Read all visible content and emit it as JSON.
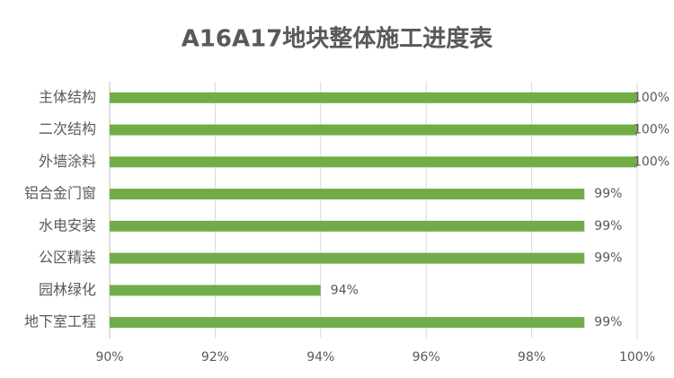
{
  "chart_data": {
    "type": "barh",
    "title": "A16A17地块整体施工进度表",
    "categories": [
      "主体结构",
      "二次结构",
      "外墙涂料",
      "铝合金门窗",
      "水电安装",
      "公区精装",
      "园林绿化",
      "地下室工程"
    ],
    "values": [
      100,
      100,
      100,
      99,
      99,
      99,
      94,
      99
    ],
    "value_labels": [
      "100%",
      "100%",
      "100%",
      "99%",
      "99%",
      "99%",
      "94%",
      "99%"
    ],
    "color": "#70ad47",
    "xlim": [
      90,
      100
    ],
    "xticks": [
      {
        "value": 90,
        "label": "90%"
      },
      {
        "value": 92,
        "label": "92%"
      },
      {
        "value": 94,
        "label": "94%"
      },
      {
        "value": 96,
        "label": "96%"
      },
      {
        "value": 98,
        "label": "98%"
      },
      {
        "value": 100,
        "label": "100%"
      }
    ],
    "grid": true
  }
}
